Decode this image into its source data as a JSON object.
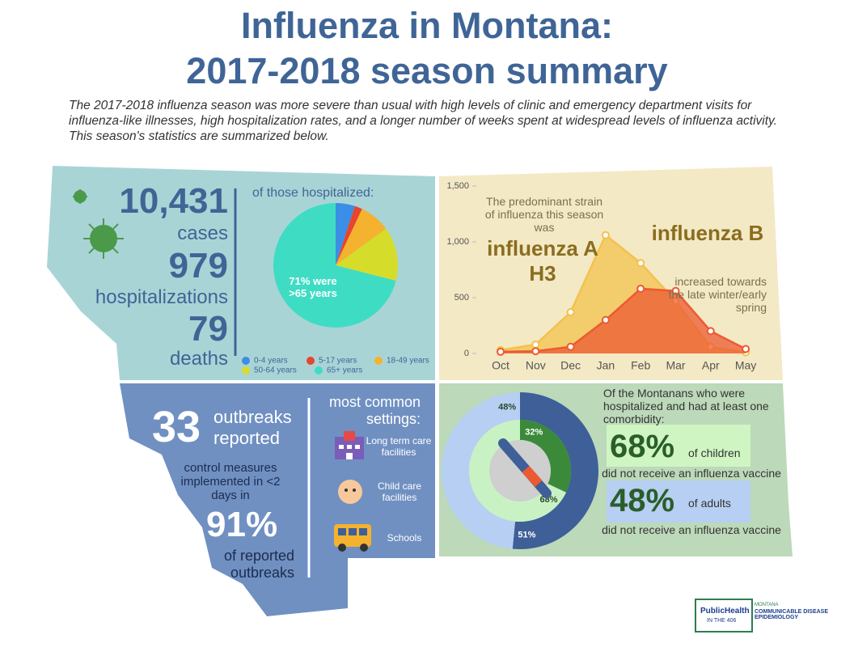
{
  "title": [
    "Influenza in Montana:",
    "2017-2018 season summary"
  ],
  "intro": "The 2017-2018 influenza season was more severe than usual with high levels of clinic and emergency department visits for influenza-like illnesses, high hospitalization rates, and a longer number of weeks spent at widespread levels of influenza activity. This season's statistics are summarized below.",
  "burden": {
    "cases": "10,431",
    "cases_label": "cases",
    "hospitalizations": "979",
    "hospitalizations_label": "hospitalizations",
    "deaths": "79",
    "deaths_label": "deaths"
  },
  "outbreaks": {
    "count": "33",
    "count_label": "outbreaks reported",
    "control_text": "control measures implemented in <2 days in",
    "percent": "91%",
    "percent_label": "of reported outbreaks",
    "settings_title": "most common settings:",
    "settings": [
      "Long term care facilities",
      "Child care facilities",
      "Schools"
    ]
  },
  "comorbidity": {
    "intro": "Of the Montanans who were hospitalized and had at least one comorbidity:",
    "children_percent": "68%",
    "children_label": "of children",
    "children_note": "did not receive an influenza vaccine",
    "adults_percent": "48%",
    "adults_label": "of adults",
    "adults_note": "did not receive an influenza vaccine"
  },
  "logo": {
    "name": "PublicHealth",
    "tagline": "IN THE 406",
    "state": "MONTANA",
    "program": "COMMUNICABLE DISEASE EPIDEMIOLOGY"
  },
  "chart_data": [
    {
      "type": "pie",
      "title": "of those hospitalized:",
      "annotation": "71% were >65 years",
      "categories": [
        "0-4 years",
        "5-17 years",
        "18-49 years",
        "50-64 years",
        "65+ years"
      ],
      "values": [
        5,
        2,
        8,
        14,
        71
      ],
      "colors": [
        "#3b8ee6",
        "#e8442e",
        "#f4b22e",
        "#d6dc2a",
        "#3fdcc4"
      ]
    },
    {
      "type": "area",
      "categories": [
        "Oct",
        "Nov",
        "Dec",
        "Jan",
        "Feb",
        "Mar",
        "Apr",
        "May"
      ],
      "ylim": [
        0,
        1500
      ],
      "yticks": [
        0,
        500,
        {
          "value": 1000,
          "label": "1,000"
        },
        {
          "value": 1500,
          "label": "1,500"
        }
      ],
      "series": [
        {
          "color": "#f3c24e",
          "values": [
            30,
            80,
            370,
            1060,
            810,
            470,
            60,
            10
          ]
        },
        {
          "color": "#ec5a32",
          "values": [
            15,
            20,
            60,
            300,
            580,
            560,
            200,
            40
          ]
        }
      ],
      "annotations": [
        "The predominant strain of influenza this season was",
        "influenza A H3",
        "influenza B",
        "increased towards the late winter/early spring"
      ]
    },
    {
      "type": "donut",
      "rings": [
        {
          "values": [
            51,
            48
          ],
          "value_labels": [
            "51%",
            "48%"
          ],
          "colors": [
            "#3e5f98",
            "#b7cff2"
          ]
        },
        {
          "values": [
            32,
            68
          ],
          "value_labels": [
            "32%",
            "68%"
          ],
          "colors": [
            "#3a8a3a",
            "#c9f2c4"
          ]
        }
      ]
    }
  ]
}
